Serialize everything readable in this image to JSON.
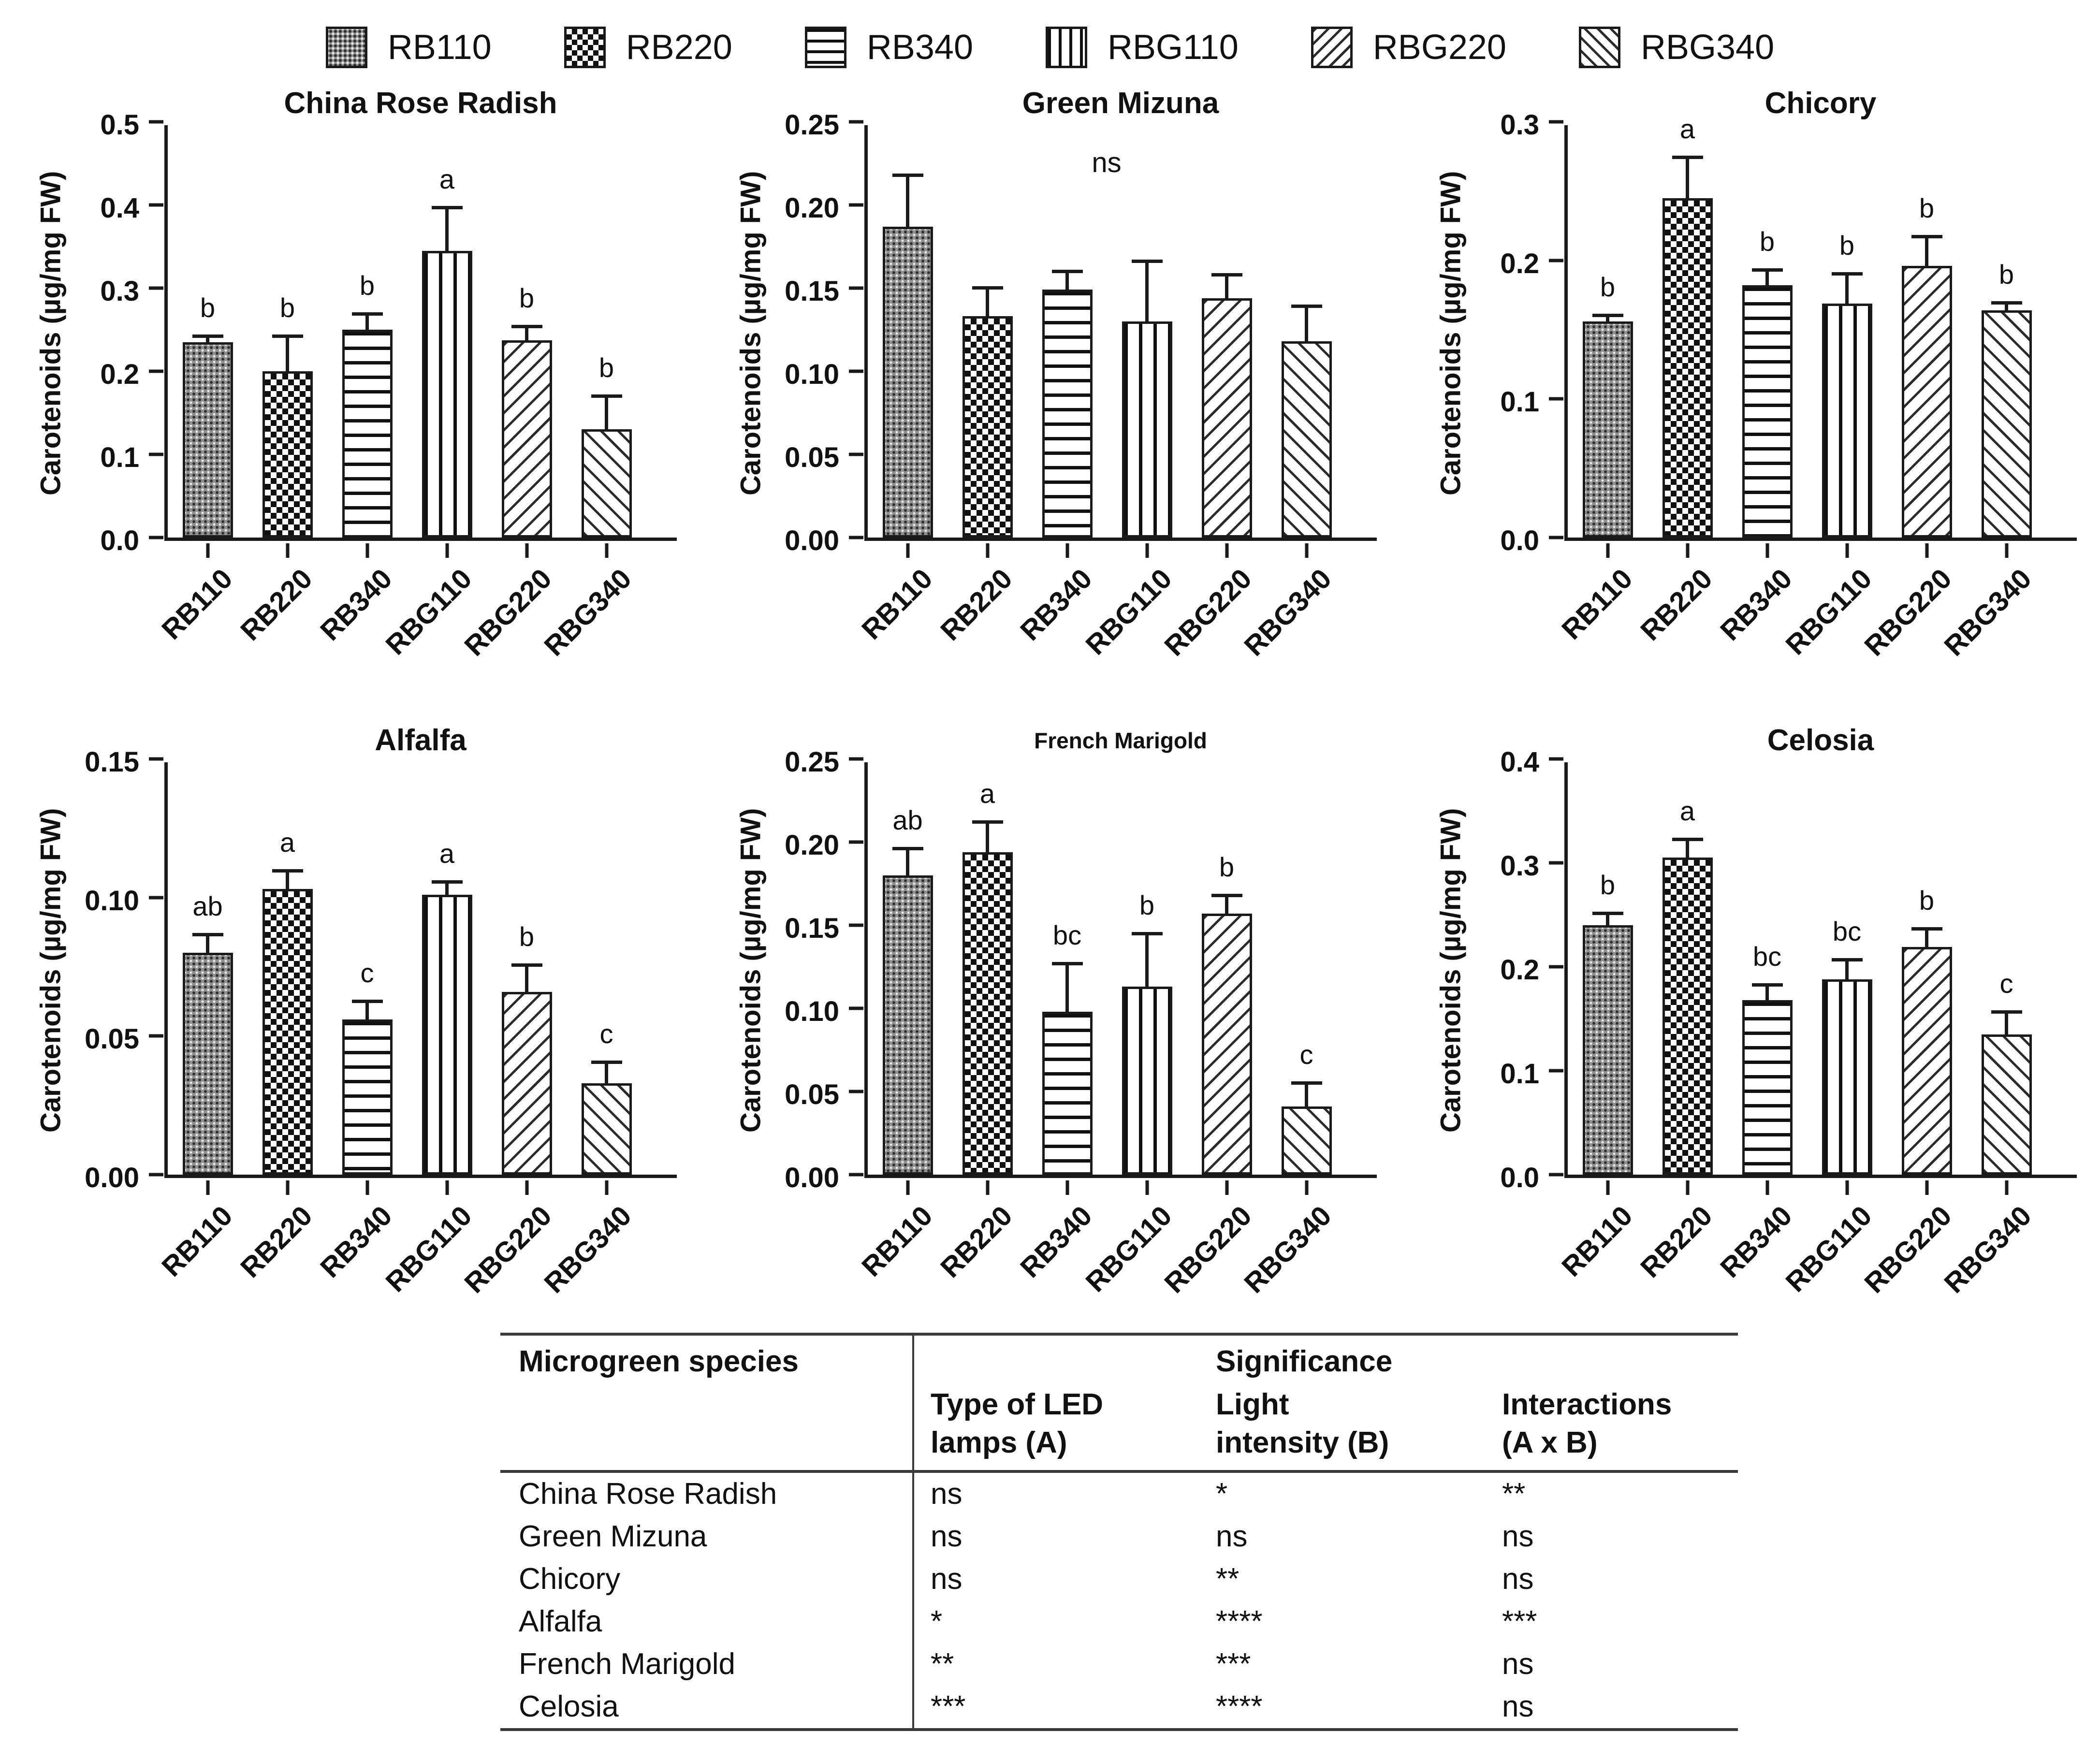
{
  "legend": {
    "items": [
      {
        "label": "RB110",
        "pattern": "rb110"
      },
      {
        "label": "RB220",
        "pattern": "rb220"
      },
      {
        "label": "RB340",
        "pattern": "rb340"
      },
      {
        "label": "RBG110",
        "pattern": "rbg110"
      },
      {
        "label": "RBG220",
        "pattern": "rbg220"
      },
      {
        "label": "RBG340",
        "pattern": "rbg340"
      }
    ]
  },
  "chart_data": [
    {
      "type": "bar",
      "title": "China Rose Radish",
      "ylabel": "Carotenoids (µg/mg FW)",
      "categories": [
        "RB110",
        "RB220",
        "RB340",
        "RBG110",
        "RBG220",
        "RBG340"
      ],
      "values": [
        0.235,
        0.2,
        0.25,
        0.345,
        0.237,
        0.13
      ],
      "errors": [
        0.005,
        0.04,
        0.017,
        0.05,
        0.015,
        0.038
      ],
      "letters": [
        "b",
        "b",
        "b",
        "a",
        "b",
        "b"
      ],
      "annotation": "",
      "ylim": [
        0,
        0.5
      ],
      "yticks": [
        0.0,
        0.1,
        0.2,
        0.3,
        0.4,
        0.5
      ],
      "ytick_labels": [
        "0.0",
        "0.1",
        "0.2",
        "0.3",
        "0.4",
        "0.5"
      ],
      "grid": false,
      "small_title": false
    },
    {
      "type": "bar",
      "title": "Green Mizuna",
      "ylabel": "Carotenoids (µg/mg FW)",
      "categories": [
        "RB110",
        "RB220",
        "RB340",
        "RBG110",
        "RBG220",
        "RBG340"
      ],
      "values": [
        0.187,
        0.133,
        0.149,
        0.13,
        0.144,
        0.118
      ],
      "errors": [
        0.03,
        0.016,
        0.01,
        0.035,
        0.013,
        0.02
      ],
      "letters": [
        "",
        "",
        "",
        "",
        "",
        ""
      ],
      "annotation": "ns",
      "ylim": [
        0,
        0.25
      ],
      "yticks": [
        0.0,
        0.05,
        0.1,
        0.15,
        0.2,
        0.25
      ],
      "ytick_labels": [
        "0.00",
        "0.05",
        "0.10",
        "0.15",
        "0.20",
        "0.25"
      ],
      "grid": false,
      "small_title": false
    },
    {
      "type": "bar",
      "title": "Chicory",
      "ylabel": "Carotenoids (µg/mg FW)",
      "categories": [
        "RB110",
        "RB220",
        "RB340",
        "RBG110",
        "RBG220",
        "RBG340"
      ],
      "values": [
        0.156,
        0.245,
        0.182,
        0.169,
        0.196,
        0.164
      ],
      "errors": [
        0.003,
        0.028,
        0.01,
        0.02,
        0.02,
        0.004
      ],
      "letters": [
        "b",
        "a",
        "b",
        "b",
        "b",
        "b"
      ],
      "annotation": "",
      "ylim": [
        0,
        0.3
      ],
      "yticks": [
        0.0,
        0.1,
        0.2,
        0.3
      ],
      "ytick_labels": [
        "0.0",
        "0.1",
        "0.2",
        "0.3"
      ],
      "grid": false,
      "small_title": false
    },
    {
      "type": "bar",
      "title": "Alfalfa",
      "ylabel": "Carotenoids (µg/mg FW)",
      "categories": [
        "RB110",
        "RB220",
        "RB340",
        "RBG110",
        "RBG220",
        "RBG340"
      ],
      "values": [
        0.08,
        0.103,
        0.056,
        0.101,
        0.066,
        0.033
      ],
      "errors": [
        0.006,
        0.006,
        0.006,
        0.004,
        0.009,
        0.007
      ],
      "letters": [
        "ab",
        "a",
        "c",
        "a",
        "b",
        "c"
      ],
      "annotation": "",
      "ylim": [
        0,
        0.15
      ],
      "yticks": [
        0.0,
        0.05,
        0.1,
        0.15
      ],
      "ytick_labels": [
        "0.00",
        "0.05",
        "0.10",
        "0.15"
      ],
      "grid": false,
      "small_title": false
    },
    {
      "type": "bar",
      "title": "French Marigold",
      "ylabel": "Carotenoids (µg/mg FW)",
      "categories": [
        "RB110",
        "RB220",
        "RB340",
        "RBG110",
        "RBG220",
        "RBG340"
      ],
      "values": [
        0.18,
        0.194,
        0.098,
        0.113,
        0.157,
        0.041
      ],
      "errors": [
        0.015,
        0.017,
        0.028,
        0.031,
        0.01,
        0.013
      ],
      "letters": [
        "ab",
        "a",
        "bc",
        "b",
        "b",
        "c"
      ],
      "annotation": "",
      "ylim": [
        0,
        0.25
      ],
      "yticks": [
        0.0,
        0.05,
        0.1,
        0.15,
        0.2,
        0.25
      ],
      "ytick_labels": [
        "0.00",
        "0.05",
        "0.10",
        "0.15",
        "0.20",
        "0.25"
      ],
      "grid": false,
      "small_title": true
    },
    {
      "type": "bar",
      "title": "Celosia",
      "ylabel": "Carotenoids (µg/mg FW)",
      "categories": [
        "RB110",
        "RB220",
        "RB340",
        "RBG110",
        "RBG220",
        "RBG340"
      ],
      "values": [
        0.24,
        0.305,
        0.168,
        0.188,
        0.219,
        0.135
      ],
      "errors": [
        0.01,
        0.016,
        0.013,
        0.017,
        0.016,
        0.02
      ],
      "letters": [
        "b",
        "a",
        "bc",
        "bc",
        "b",
        "c"
      ],
      "annotation": "",
      "ylim": [
        0,
        0.4
      ],
      "yticks": [
        0.0,
        0.1,
        0.2,
        0.3,
        0.4
      ],
      "ytick_labels": [
        "0.0",
        "0.1",
        "0.2",
        "0.3",
        "0.4"
      ],
      "grid": false,
      "small_title": false
    }
  ],
  "table": {
    "col1_header": "Microgreen species",
    "group_header": "Significance",
    "subheaders": [
      "Type of LED\nlamps (A)",
      "Light\nintensity (B)",
      "Interactions\n(A x B)"
    ],
    "rows": [
      {
        "species": "China Rose Radish",
        "a": "ns",
        "b": "*",
        "ab": "**"
      },
      {
        "species": "Green Mizuna",
        "a": "ns",
        "b": "ns",
        "ab": "ns"
      },
      {
        "species": "Chicory",
        "a": "ns",
        "b": "**",
        "ab": "ns"
      },
      {
        "species": "Alfalfa",
        "a": "*",
        "b": "****",
        "ab": "***"
      },
      {
        "species": "French Marigold",
        "a": "**",
        "b": "***",
        "ab": "ns"
      },
      {
        "species": "Celosia",
        "a": "***",
        "b": "****",
        "ab": "ns"
      }
    ]
  },
  "colors": {
    "ink": "#1a1a1a",
    "table_rule": "#3a3a3a",
    "background": "#ffffff"
  }
}
